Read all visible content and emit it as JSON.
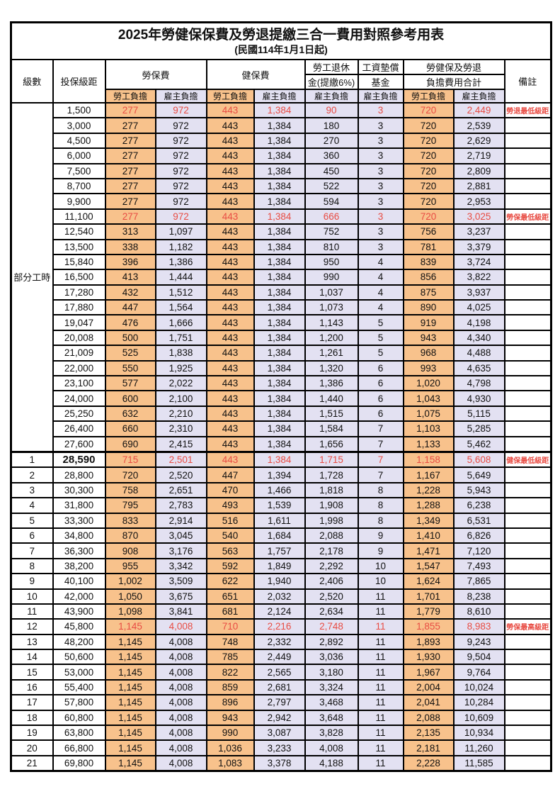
{
  "title": "2025年勞健保保費及勞退提繳三合一費用對照參考用表",
  "subtitle": "(民國114年1月1日起)",
  "colors": {
    "employee_bg": "#f8c28c",
    "employer_bg": "#e3e1f2",
    "highlight_red": "#e84c43",
    "border": "#000000"
  },
  "header": {
    "level": "級數",
    "bracket": "投保級距",
    "labor_insurance": "勞保費",
    "health_insurance": "健保費",
    "pension_line1": "勞工退休",
    "pension_line2": "金(提繳6%)",
    "fund_line1": "工資墊償",
    "fund_line2": "基金",
    "total_line1": "勞健保及勞退",
    "total_line2": "負擔費用合計",
    "remark": "備註",
    "employee": "勞工負擔",
    "employer": "雇主負擔"
  },
  "part_time": {
    "label": "部分工時",
    "span": 23
  },
  "rows": [
    {
      "level": "",
      "bracket": "1,500",
      "v": [
        "277",
        "972",
        "443",
        "1,384",
        "90",
        "3",
        "720",
        "2,449"
      ],
      "red": true,
      "remark": "勞退最低級距"
    },
    {
      "level": "",
      "bracket": "3,000",
      "v": [
        "277",
        "972",
        "443",
        "1,384",
        "180",
        "3",
        "720",
        "2,539"
      ],
      "red": false,
      "remark": ""
    },
    {
      "level": "",
      "bracket": "4,500",
      "v": [
        "277",
        "972",
        "443",
        "1,384",
        "270",
        "3",
        "720",
        "2,629"
      ],
      "red": false,
      "remark": ""
    },
    {
      "level": "",
      "bracket": "6,000",
      "v": [
        "277",
        "972",
        "443",
        "1,384",
        "360",
        "3",
        "720",
        "2,719"
      ],
      "red": false,
      "remark": ""
    },
    {
      "level": "",
      "bracket": "7,500",
      "v": [
        "277",
        "972",
        "443",
        "1,384",
        "450",
        "3",
        "720",
        "2,809"
      ],
      "red": false,
      "remark": ""
    },
    {
      "level": "",
      "bracket": "8,700",
      "v": [
        "277",
        "972",
        "443",
        "1,384",
        "522",
        "3",
        "720",
        "2,881"
      ],
      "red": false,
      "remark": ""
    },
    {
      "level": "",
      "bracket": "9,900",
      "v": [
        "277",
        "972",
        "443",
        "1,384",
        "594",
        "3",
        "720",
        "2,953"
      ],
      "red": false,
      "remark": ""
    },
    {
      "level": "",
      "bracket": "11,100",
      "v": [
        "277",
        "972",
        "443",
        "1,384",
        "666",
        "3",
        "720",
        "3,025"
      ],
      "red": true,
      "remark": "勞保最低級距"
    },
    {
      "level": "",
      "bracket": "12,540",
      "v": [
        "313",
        "1,097",
        "443",
        "1,384",
        "752",
        "3",
        "756",
        "3,237"
      ],
      "red": false,
      "remark": ""
    },
    {
      "level": "",
      "bracket": "13,500",
      "v": [
        "338",
        "1,182",
        "443",
        "1,384",
        "810",
        "3",
        "781",
        "3,379"
      ],
      "red": false,
      "remark": ""
    },
    {
      "level": "",
      "bracket": "15,840",
      "v": [
        "396",
        "1,386",
        "443",
        "1,384",
        "950",
        "4",
        "839",
        "3,724"
      ],
      "red": false,
      "remark": ""
    },
    {
      "level": "",
      "bracket": "16,500",
      "v": [
        "413",
        "1,444",
        "443",
        "1,384",
        "990",
        "4",
        "856",
        "3,822"
      ],
      "red": false,
      "remark": ""
    },
    {
      "level": "",
      "bracket": "17,280",
      "v": [
        "432",
        "1,512",
        "443",
        "1,384",
        "1,037",
        "4",
        "875",
        "3,937"
      ],
      "red": false,
      "remark": ""
    },
    {
      "level": "",
      "bracket": "17,880",
      "v": [
        "447",
        "1,564",
        "443",
        "1,384",
        "1,073",
        "4",
        "890",
        "4,025"
      ],
      "red": false,
      "remark": ""
    },
    {
      "level": "",
      "bracket": "19,047",
      "v": [
        "476",
        "1,666",
        "443",
        "1,384",
        "1,143",
        "5",
        "919",
        "4,198"
      ],
      "red": false,
      "remark": ""
    },
    {
      "level": "",
      "bracket": "20,008",
      "v": [
        "500",
        "1,751",
        "443",
        "1,384",
        "1,200",
        "5",
        "943",
        "4,340"
      ],
      "red": false,
      "remark": ""
    },
    {
      "level": "",
      "bracket": "21,009",
      "v": [
        "525",
        "1,838",
        "443",
        "1,384",
        "1,261",
        "5",
        "968",
        "4,488"
      ],
      "red": false,
      "remark": ""
    },
    {
      "level": "",
      "bracket": "22,000",
      "v": [
        "550",
        "1,925",
        "443",
        "1,384",
        "1,320",
        "6",
        "993",
        "4,635"
      ],
      "red": false,
      "remark": ""
    },
    {
      "level": "",
      "bracket": "23,100",
      "v": [
        "577",
        "2,022",
        "443",
        "1,384",
        "1,386",
        "6",
        "1,020",
        "4,798"
      ],
      "red": false,
      "remark": ""
    },
    {
      "level": "",
      "bracket": "24,000",
      "v": [
        "600",
        "2,100",
        "443",
        "1,384",
        "1,440",
        "6",
        "1,043",
        "4,930"
      ],
      "red": false,
      "remark": ""
    },
    {
      "level": "",
      "bracket": "25,250",
      "v": [
        "632",
        "2,210",
        "443",
        "1,384",
        "1,515",
        "6",
        "1,075",
        "5,115"
      ],
      "red": false,
      "remark": ""
    },
    {
      "level": "",
      "bracket": "26,400",
      "v": [
        "660",
        "2,310",
        "443",
        "1,384",
        "1,584",
        "7",
        "1,103",
        "5,285"
      ],
      "red": false,
      "remark": ""
    },
    {
      "level": "",
      "bracket": "27,600",
      "v": [
        "690",
        "2,415",
        "443",
        "1,384",
        "1,656",
        "7",
        "1,133",
        "5,462"
      ],
      "red": false,
      "remark": ""
    },
    {
      "level": "1",
      "bracket": "28,590",
      "v": [
        "715",
        "2,501",
        "443",
        "1,384",
        "1,715",
        "7",
        "1,158",
        "5,608"
      ],
      "red": true,
      "remark": "健保最低級距",
      "section": true,
      "bold": true
    },
    {
      "level": "2",
      "bracket": "28,800",
      "v": [
        "720",
        "2,520",
        "447",
        "1,394",
        "1,728",
        "7",
        "1,167",
        "5,649"
      ],
      "red": false,
      "remark": ""
    },
    {
      "level": "3",
      "bracket": "30,300",
      "v": [
        "758",
        "2,651",
        "470",
        "1,466",
        "1,818",
        "8",
        "1,228",
        "5,943"
      ],
      "red": false,
      "remark": ""
    },
    {
      "level": "4",
      "bracket": "31,800",
      "v": [
        "795",
        "2,783",
        "493",
        "1,539",
        "1,908",
        "8",
        "1,288",
        "6,238"
      ],
      "red": false,
      "remark": ""
    },
    {
      "level": "5",
      "bracket": "33,300",
      "v": [
        "833",
        "2,914",
        "516",
        "1,611",
        "1,998",
        "8",
        "1,349",
        "6,531"
      ],
      "red": false,
      "remark": ""
    },
    {
      "level": "6",
      "bracket": "34,800",
      "v": [
        "870",
        "3,045",
        "540",
        "1,684",
        "2,088",
        "9",
        "1,410",
        "6,826"
      ],
      "red": false,
      "remark": ""
    },
    {
      "level": "7",
      "bracket": "36,300",
      "v": [
        "908",
        "3,176",
        "563",
        "1,757",
        "2,178",
        "9",
        "1,471",
        "7,120"
      ],
      "red": false,
      "remark": ""
    },
    {
      "level": "8",
      "bracket": "38,200",
      "v": [
        "955",
        "3,342",
        "592",
        "1,849",
        "2,292",
        "10",
        "1,547",
        "7,493"
      ],
      "red": false,
      "remark": ""
    },
    {
      "level": "9",
      "bracket": "40,100",
      "v": [
        "1,002",
        "3,509",
        "622",
        "1,940",
        "2,406",
        "10",
        "1,624",
        "7,865"
      ],
      "red": false,
      "remark": ""
    },
    {
      "level": "10",
      "bracket": "42,000",
      "v": [
        "1,050",
        "3,675",
        "651",
        "2,032",
        "2,520",
        "11",
        "1,701",
        "8,238"
      ],
      "red": false,
      "remark": ""
    },
    {
      "level": "11",
      "bracket": "43,900",
      "v": [
        "1,098",
        "3,841",
        "681",
        "2,124",
        "2,634",
        "11",
        "1,779",
        "8,610"
      ],
      "red": false,
      "remark": ""
    },
    {
      "level": "12",
      "bracket": "45,800",
      "v": [
        "1,145",
        "4,008",
        "710",
        "2,216",
        "2,748",
        "11",
        "1,855",
        "8,983"
      ],
      "red": true,
      "remark": "勞保最高級距"
    },
    {
      "level": "13",
      "bracket": "48,200",
      "v": [
        "1,145",
        "4,008",
        "748",
        "2,332",
        "2,892",
        "11",
        "1,893",
        "9,243"
      ],
      "red": false,
      "remark": ""
    },
    {
      "level": "14",
      "bracket": "50,600",
      "v": [
        "1,145",
        "4,008",
        "785",
        "2,449",
        "3,036",
        "11",
        "1,930",
        "9,504"
      ],
      "red": false,
      "remark": ""
    },
    {
      "level": "15",
      "bracket": "53,000",
      "v": [
        "1,145",
        "4,008",
        "822",
        "2,565",
        "3,180",
        "11",
        "1,967",
        "9,764"
      ],
      "red": false,
      "remark": ""
    },
    {
      "level": "16",
      "bracket": "55,400",
      "v": [
        "1,145",
        "4,008",
        "859",
        "2,681",
        "3,324",
        "11",
        "2,004",
        "10,024"
      ],
      "red": false,
      "remark": ""
    },
    {
      "level": "17",
      "bracket": "57,800",
      "v": [
        "1,145",
        "4,008",
        "896",
        "2,797",
        "3,468",
        "11",
        "2,041",
        "10,284"
      ],
      "red": false,
      "remark": ""
    },
    {
      "level": "18",
      "bracket": "60,800",
      "v": [
        "1,145",
        "4,008",
        "943",
        "2,942",
        "3,648",
        "11",
        "2,088",
        "10,609"
      ],
      "red": false,
      "remark": ""
    },
    {
      "level": "19",
      "bracket": "63,800",
      "v": [
        "1,145",
        "4,008",
        "990",
        "3,087",
        "3,828",
        "11",
        "2,135",
        "10,934"
      ],
      "red": false,
      "remark": ""
    },
    {
      "level": "20",
      "bracket": "66,800",
      "v": [
        "1,145",
        "4,008",
        "1,036",
        "3,233",
        "4,008",
        "11",
        "2,181",
        "11,260"
      ],
      "red": false,
      "remark": ""
    },
    {
      "level": "21",
      "bracket": "69,800",
      "v": [
        "1,145",
        "4,008",
        "1,083",
        "3,378",
        "4,188",
        "11",
        "2,228",
        "11,585"
      ],
      "red": false,
      "remark": ""
    }
  ]
}
